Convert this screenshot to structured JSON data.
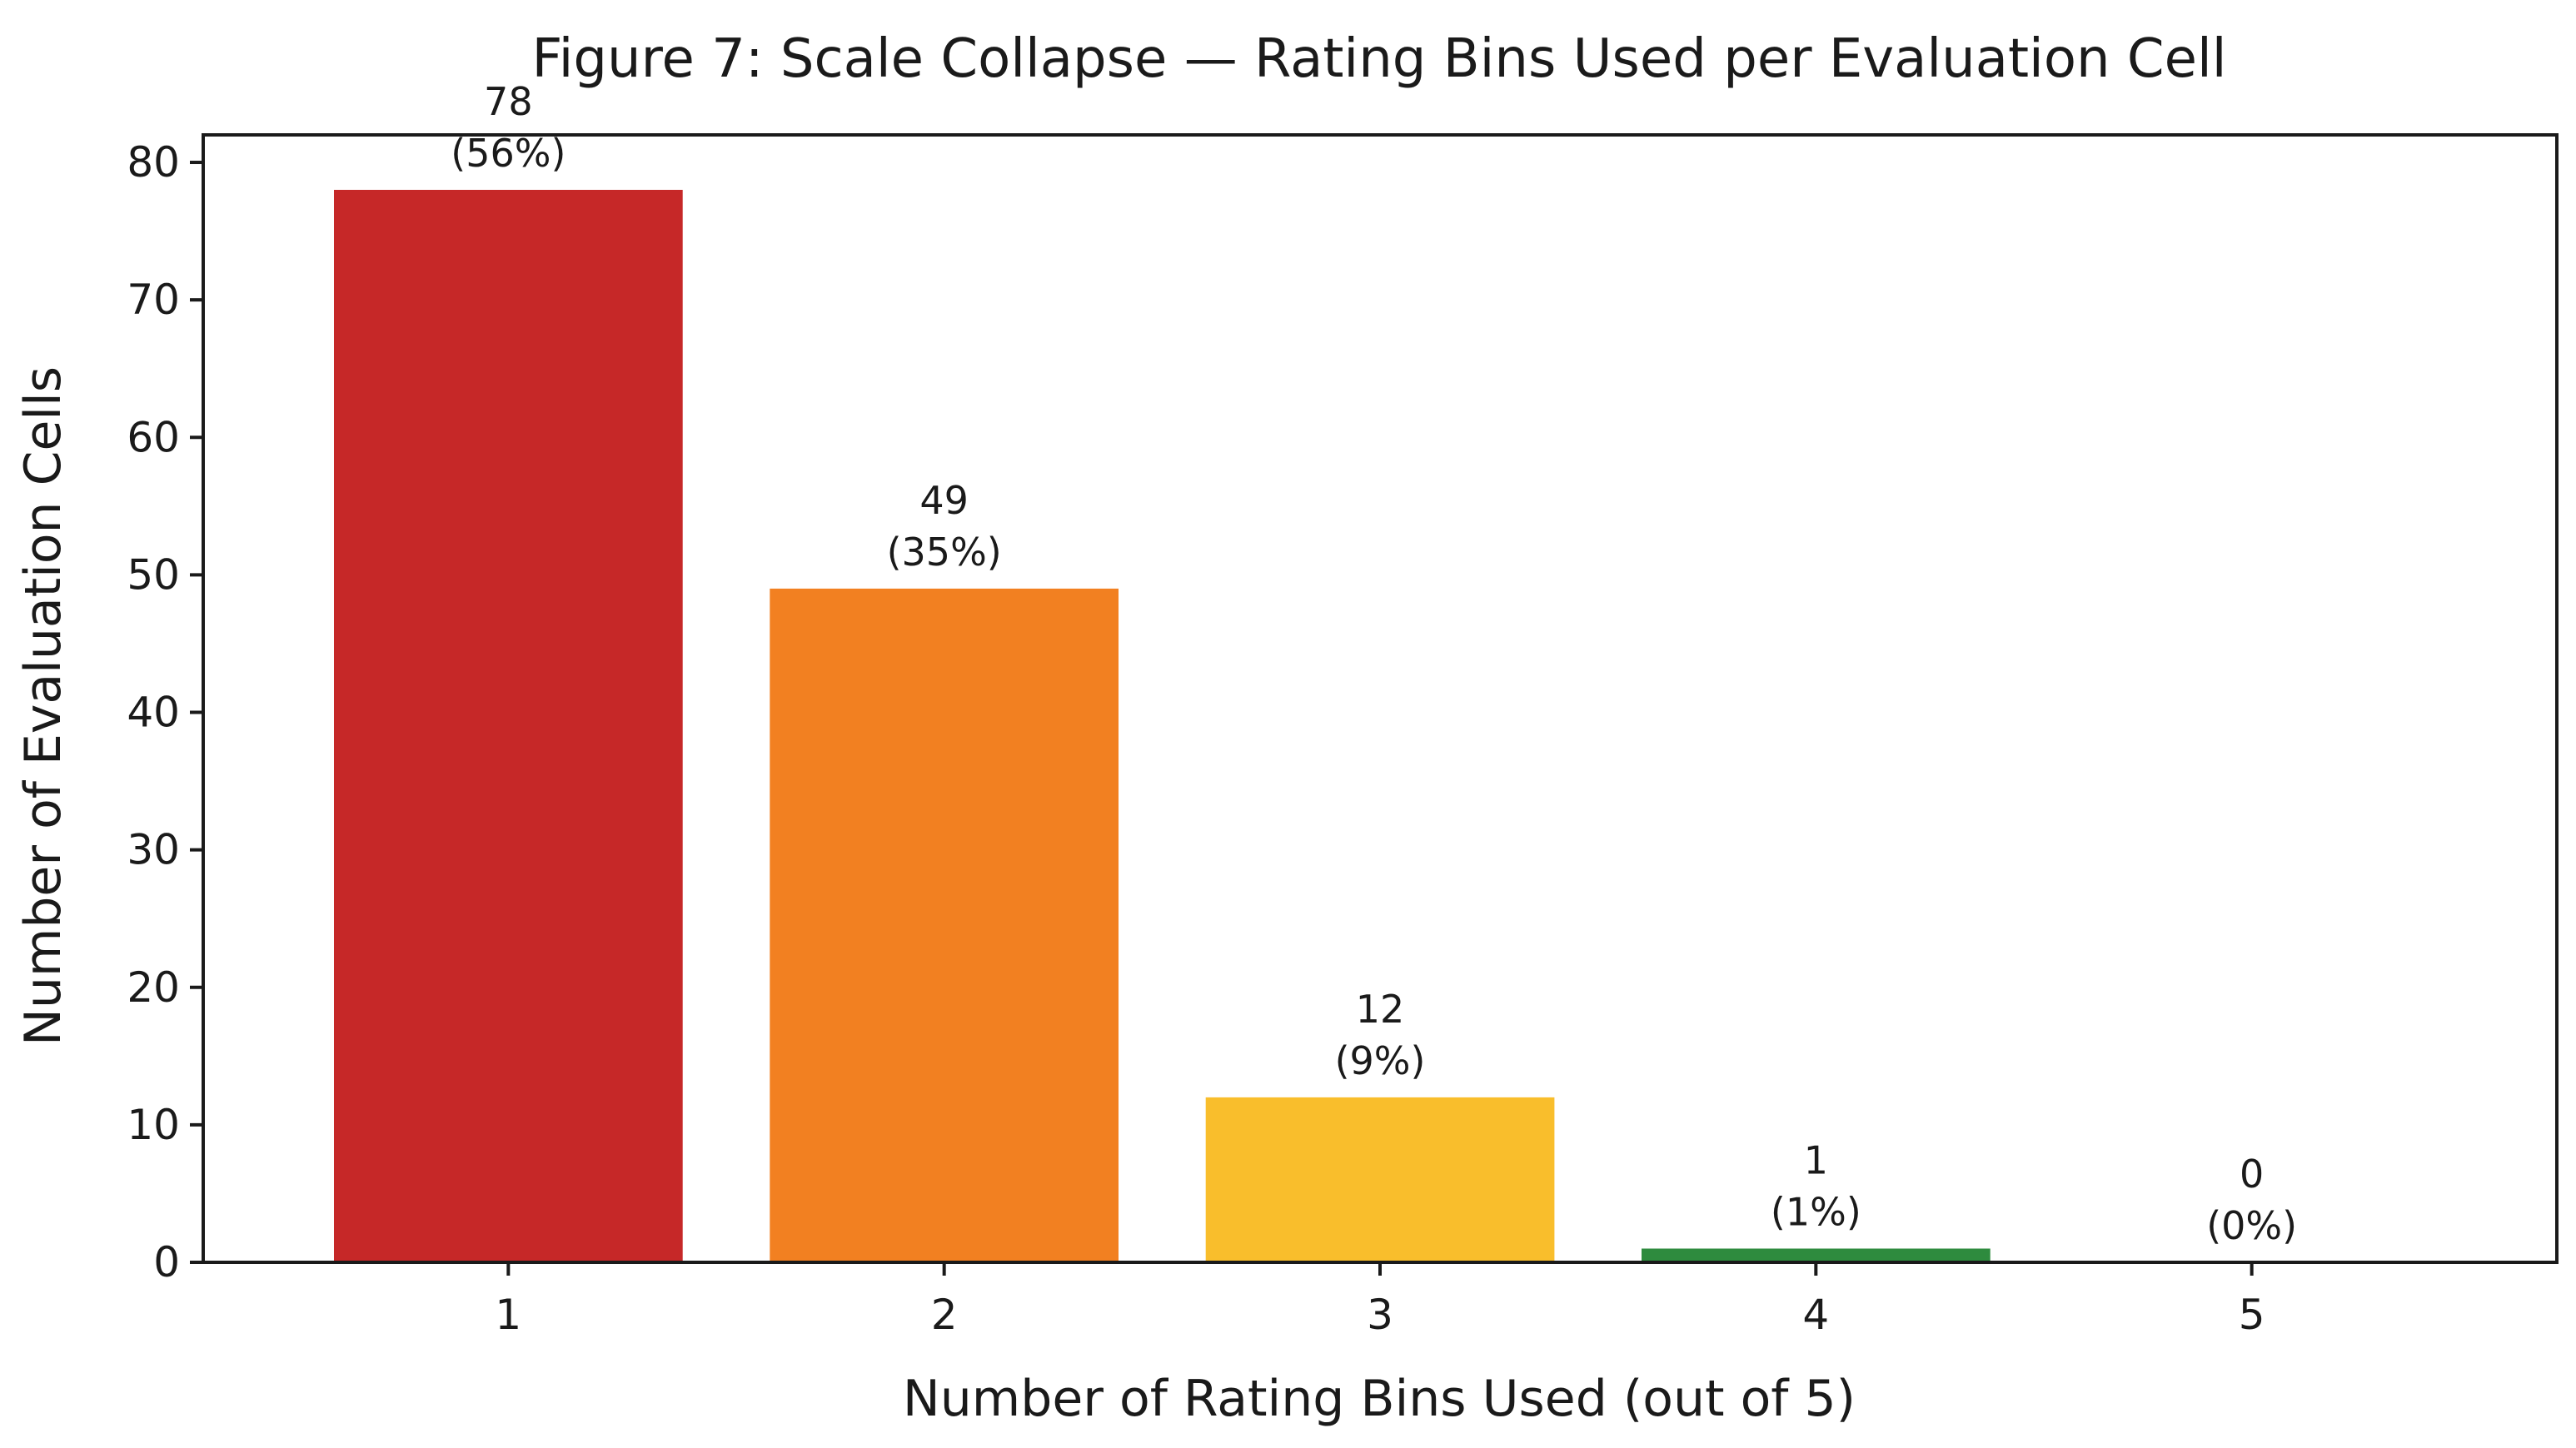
{
  "chart_data": {
    "type": "bar",
    "title": "Figure 7: Scale Collapse — Rating Bins Used per Evaluation Cell",
    "xlabel": "Number of Rating Bins Used (out of 5)",
    "ylabel": "Number of Evaluation Cells",
    "categories": [
      "1",
      "2",
      "3",
      "4",
      "5"
    ],
    "values": [
      78,
      49,
      12,
      1,
      0
    ],
    "value_labels": [
      "78",
      "49",
      "12",
      "1",
      "0"
    ],
    "percent_labels": [
      "(56%)",
      "(35%)",
      "(9%)",
      "(1%)",
      "(0%)"
    ],
    "bar_colors": [
      "#c62828",
      "#f28021",
      "#f9be2c",
      "#2e8b3e",
      "#2e8b3e"
    ],
    "ylim": [
      0,
      82
    ],
    "yticks": [
      0,
      10,
      20,
      30,
      40,
      50,
      60,
      70,
      80
    ],
    "grid": false,
    "legend": "none"
  }
}
